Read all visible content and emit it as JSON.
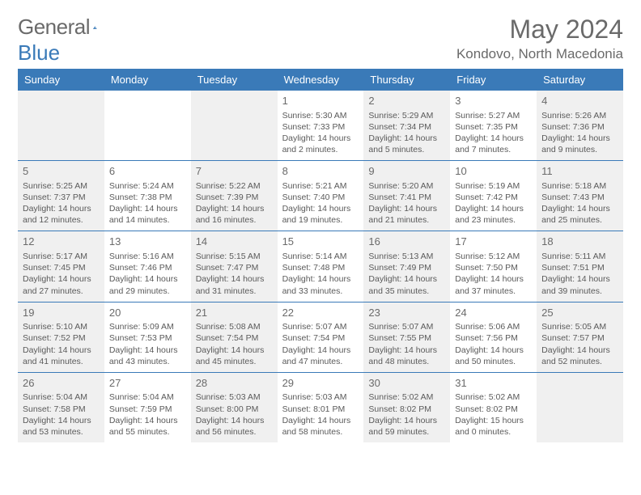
{
  "logo": {
    "text1": "General",
    "text2": "Blue"
  },
  "title": "May 2024",
  "location": "Kondovo, North Macedonia",
  "colors": {
    "header_bg": "#3a7ab8",
    "header_text": "#ffffff",
    "shade_bg": "#f0f0f0",
    "border": "#3a7ab8",
    "text": "#5a5a5a"
  },
  "weekdays": [
    "Sunday",
    "Monday",
    "Tuesday",
    "Wednesday",
    "Thursday",
    "Friday",
    "Saturday"
  ],
  "weeks": [
    [
      {
        "d": "",
        "shaded": true
      },
      {
        "d": ""
      },
      {
        "d": "",
        "shaded": true
      },
      {
        "d": "1",
        "sr": "5:30 AM",
        "ss": "7:33 PM",
        "dl": "14 hours and 2 minutes."
      },
      {
        "d": "2",
        "sr": "5:29 AM",
        "ss": "7:34 PM",
        "dl": "14 hours and 5 minutes.",
        "shaded": true
      },
      {
        "d": "3",
        "sr": "5:27 AM",
        "ss": "7:35 PM",
        "dl": "14 hours and 7 minutes."
      },
      {
        "d": "4",
        "sr": "5:26 AM",
        "ss": "7:36 PM",
        "dl": "14 hours and 9 minutes.",
        "shaded": true
      }
    ],
    [
      {
        "d": "5",
        "sr": "5:25 AM",
        "ss": "7:37 PM",
        "dl": "14 hours and 12 minutes.",
        "shaded": true
      },
      {
        "d": "6",
        "sr": "5:24 AM",
        "ss": "7:38 PM",
        "dl": "14 hours and 14 minutes."
      },
      {
        "d": "7",
        "sr": "5:22 AM",
        "ss": "7:39 PM",
        "dl": "14 hours and 16 minutes.",
        "shaded": true
      },
      {
        "d": "8",
        "sr": "5:21 AM",
        "ss": "7:40 PM",
        "dl": "14 hours and 19 minutes."
      },
      {
        "d": "9",
        "sr": "5:20 AM",
        "ss": "7:41 PM",
        "dl": "14 hours and 21 minutes.",
        "shaded": true
      },
      {
        "d": "10",
        "sr": "5:19 AM",
        "ss": "7:42 PM",
        "dl": "14 hours and 23 minutes."
      },
      {
        "d": "11",
        "sr": "5:18 AM",
        "ss": "7:43 PM",
        "dl": "14 hours and 25 minutes.",
        "shaded": true
      }
    ],
    [
      {
        "d": "12",
        "sr": "5:17 AM",
        "ss": "7:45 PM",
        "dl": "14 hours and 27 minutes.",
        "shaded": true
      },
      {
        "d": "13",
        "sr": "5:16 AM",
        "ss": "7:46 PM",
        "dl": "14 hours and 29 minutes."
      },
      {
        "d": "14",
        "sr": "5:15 AM",
        "ss": "7:47 PM",
        "dl": "14 hours and 31 minutes.",
        "shaded": true
      },
      {
        "d": "15",
        "sr": "5:14 AM",
        "ss": "7:48 PM",
        "dl": "14 hours and 33 minutes."
      },
      {
        "d": "16",
        "sr": "5:13 AM",
        "ss": "7:49 PM",
        "dl": "14 hours and 35 minutes.",
        "shaded": true
      },
      {
        "d": "17",
        "sr": "5:12 AM",
        "ss": "7:50 PM",
        "dl": "14 hours and 37 minutes."
      },
      {
        "d": "18",
        "sr": "5:11 AM",
        "ss": "7:51 PM",
        "dl": "14 hours and 39 minutes.",
        "shaded": true
      }
    ],
    [
      {
        "d": "19",
        "sr": "5:10 AM",
        "ss": "7:52 PM",
        "dl": "14 hours and 41 minutes.",
        "shaded": true
      },
      {
        "d": "20",
        "sr": "5:09 AM",
        "ss": "7:53 PM",
        "dl": "14 hours and 43 minutes."
      },
      {
        "d": "21",
        "sr": "5:08 AM",
        "ss": "7:54 PM",
        "dl": "14 hours and 45 minutes.",
        "shaded": true
      },
      {
        "d": "22",
        "sr": "5:07 AM",
        "ss": "7:54 PM",
        "dl": "14 hours and 47 minutes."
      },
      {
        "d": "23",
        "sr": "5:07 AM",
        "ss": "7:55 PM",
        "dl": "14 hours and 48 minutes.",
        "shaded": true
      },
      {
        "d": "24",
        "sr": "5:06 AM",
        "ss": "7:56 PM",
        "dl": "14 hours and 50 minutes."
      },
      {
        "d": "25",
        "sr": "5:05 AM",
        "ss": "7:57 PM",
        "dl": "14 hours and 52 minutes.",
        "shaded": true
      }
    ],
    [
      {
        "d": "26",
        "sr": "5:04 AM",
        "ss": "7:58 PM",
        "dl": "14 hours and 53 minutes.",
        "shaded": true
      },
      {
        "d": "27",
        "sr": "5:04 AM",
        "ss": "7:59 PM",
        "dl": "14 hours and 55 minutes."
      },
      {
        "d": "28",
        "sr": "5:03 AM",
        "ss": "8:00 PM",
        "dl": "14 hours and 56 minutes.",
        "shaded": true
      },
      {
        "d": "29",
        "sr": "5:03 AM",
        "ss": "8:01 PM",
        "dl": "14 hours and 58 minutes."
      },
      {
        "d": "30",
        "sr": "5:02 AM",
        "ss": "8:02 PM",
        "dl": "14 hours and 59 minutes.",
        "shaded": true
      },
      {
        "d": "31",
        "sr": "5:02 AM",
        "ss": "8:02 PM",
        "dl": "15 hours and 0 minutes."
      },
      {
        "d": "",
        "shaded": true
      }
    ]
  ],
  "labels": {
    "sunrise": "Sunrise:",
    "sunset": "Sunset:",
    "daylight": "Daylight:"
  }
}
